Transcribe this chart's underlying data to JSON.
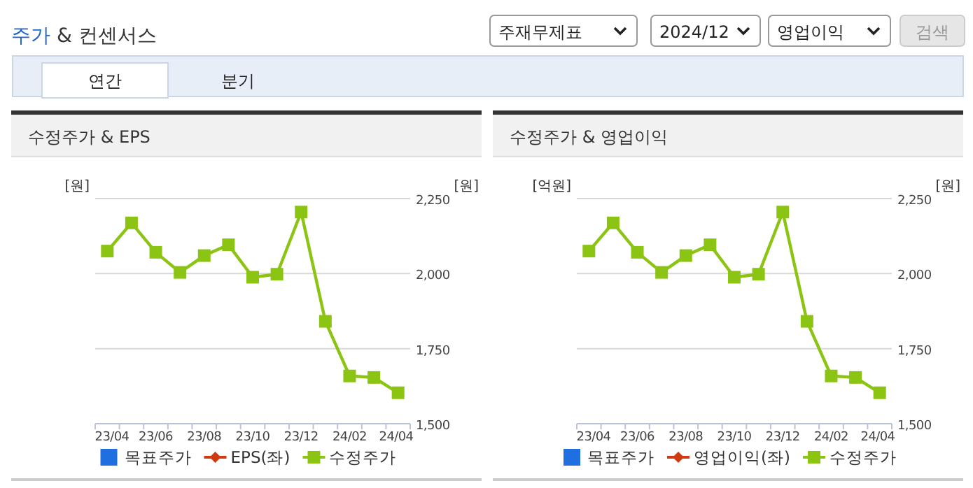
{
  "chart_data": [
    {
      "type": "other",
      "title": "주가 & 컨센서스",
      "annotations": [
        "주재무제표",
        "2024/12",
        "영업이익",
        "검색",
        "연간",
        "분기"
      ]
    },
    {
      "type": "line",
      "title": "수정주가 & EPS",
      "ylabel": "[원]",
      "y2label": "[원]",
      "categories": [
        "23/04",
        null,
        "23/06",
        null,
        "23/08",
        null,
        "23/10",
        null,
        "23/12",
        null,
        "24/02",
        null,
        "24/04"
      ],
      "series": [
        {
          "name": "목표주가",
          "type": "bar",
          "color": "#1f6fe0",
          "values": [
            null,
            null,
            null,
            null,
            null,
            null,
            null,
            null,
            null,
            null,
            null,
            null,
            null
          ]
        },
        {
          "name": "EPS(좌)",
          "color": "#d03a10",
          "marker": "diamond",
          "values": [
            null,
            null,
            null,
            null,
            null,
            null,
            null,
            null,
            null,
            null,
            null,
            null,
            null
          ]
        },
        {
          "name": "수정주가",
          "color": "#8cc414",
          "marker": "square",
          "axis": "y2",
          "values": [
            2075,
            2169,
            2071,
            2004,
            2060,
            2096,
            1988,
            1998,
            2205,
            1841,
            1659,
            1654,
            1603
          ]
        }
      ],
      "y2lim": [
        1500,
        2250
      ],
      "y2ticks": [
        {
          "value": 1500,
          "label": "1,500"
        },
        {
          "value": 1750,
          "label": "1,750"
        },
        {
          "value": 2000,
          "label": "2,000"
        },
        {
          "value": 2250,
          "label": "2,250"
        }
      ],
      "grid": "y",
      "legend": "bottom"
    },
    {
      "type": "line",
      "title": "수정주가 & 영업이익",
      "ylabel": "[억원]",
      "y2label": "[원]",
      "categories": [
        "23/04",
        null,
        "23/06",
        null,
        "23/08",
        null,
        "23/10",
        null,
        "23/12",
        null,
        "24/02",
        null,
        "24/04"
      ],
      "series": [
        {
          "name": "목표주가",
          "type": "bar",
          "color": "#1f6fe0",
          "values": [
            null,
            null,
            null,
            null,
            null,
            null,
            null,
            null,
            null,
            null,
            null,
            null,
            null
          ]
        },
        {
          "name": "영업이익(좌)",
          "color": "#d03a10",
          "marker": "diamond",
          "values": [
            null,
            null,
            null,
            null,
            null,
            null,
            null,
            null,
            null,
            null,
            null,
            null,
            null
          ]
        },
        {
          "name": "수정주가",
          "color": "#8cc414",
          "marker": "square",
          "axis": "y2",
          "values": [
            2075,
            2169,
            2071,
            2004,
            2060,
            2096,
            1988,
            1998,
            2205,
            1841,
            1659,
            1654,
            1603
          ]
        }
      ],
      "y2lim": [
        1500,
        2250
      ],
      "y2ticks": [
        {
          "value": 1500,
          "label": "1,500"
        },
        {
          "value": 1750,
          "label": "1,750"
        },
        {
          "value": 2000,
          "label": "2,000"
        },
        {
          "value": 2250,
          "label": "2,250"
        }
      ],
      "grid": "y",
      "legend": "bottom"
    }
  ]
}
